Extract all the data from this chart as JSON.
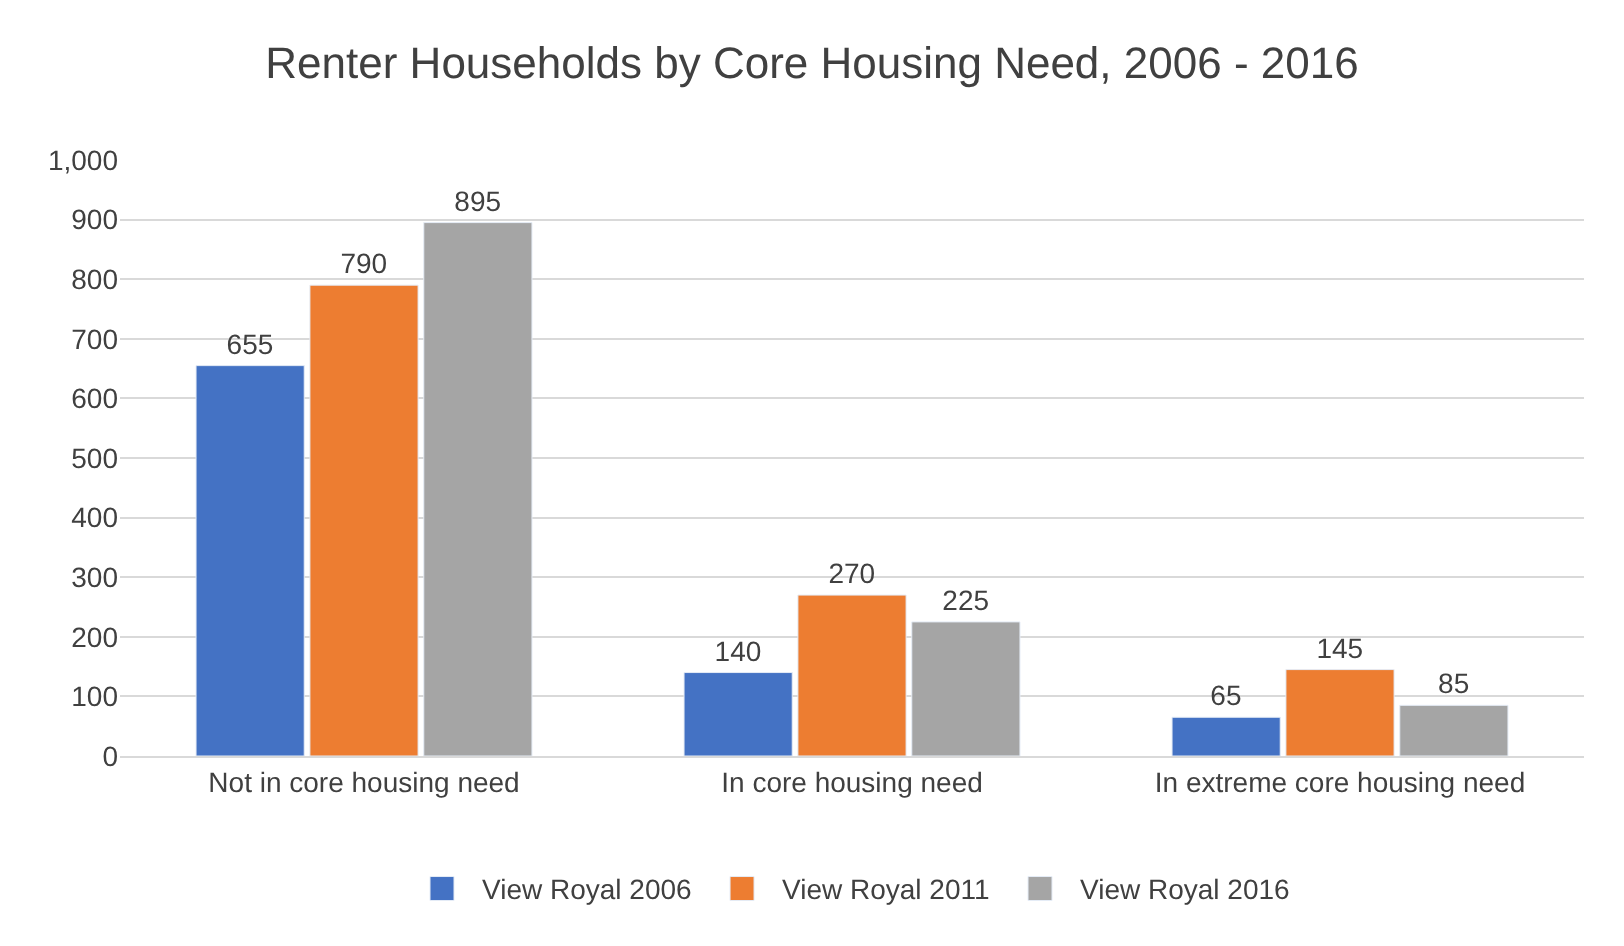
{
  "chart_data": {
    "type": "bar",
    "title": "Renter Households by Core Housing Need, 2006 - 2016",
    "categories": [
      "Not in core housing need",
      "In core housing need",
      "In extreme core housing need"
    ],
    "series": [
      {
        "name": "View Royal 2006",
        "color": "#4472c4",
        "values": [
          655,
          140,
          65
        ]
      },
      {
        "name": "View Royal 2011",
        "color": "#ed7d31",
        "values": [
          790,
          270,
          145
        ]
      },
      {
        "name": "View Royal 2016",
        "color": "#a5a5a5",
        "values": [
          895,
          225,
          85
        ]
      }
    ],
    "ylim": [
      0,
      1000
    ],
    "yticks": [
      0,
      100,
      200,
      300,
      400,
      500,
      600,
      700,
      800,
      900,
      {
        "value": 1000,
        "label": "1,000"
      }
    ],
    "grid": "y",
    "legend": "bottom",
    "data_labels": true
  }
}
